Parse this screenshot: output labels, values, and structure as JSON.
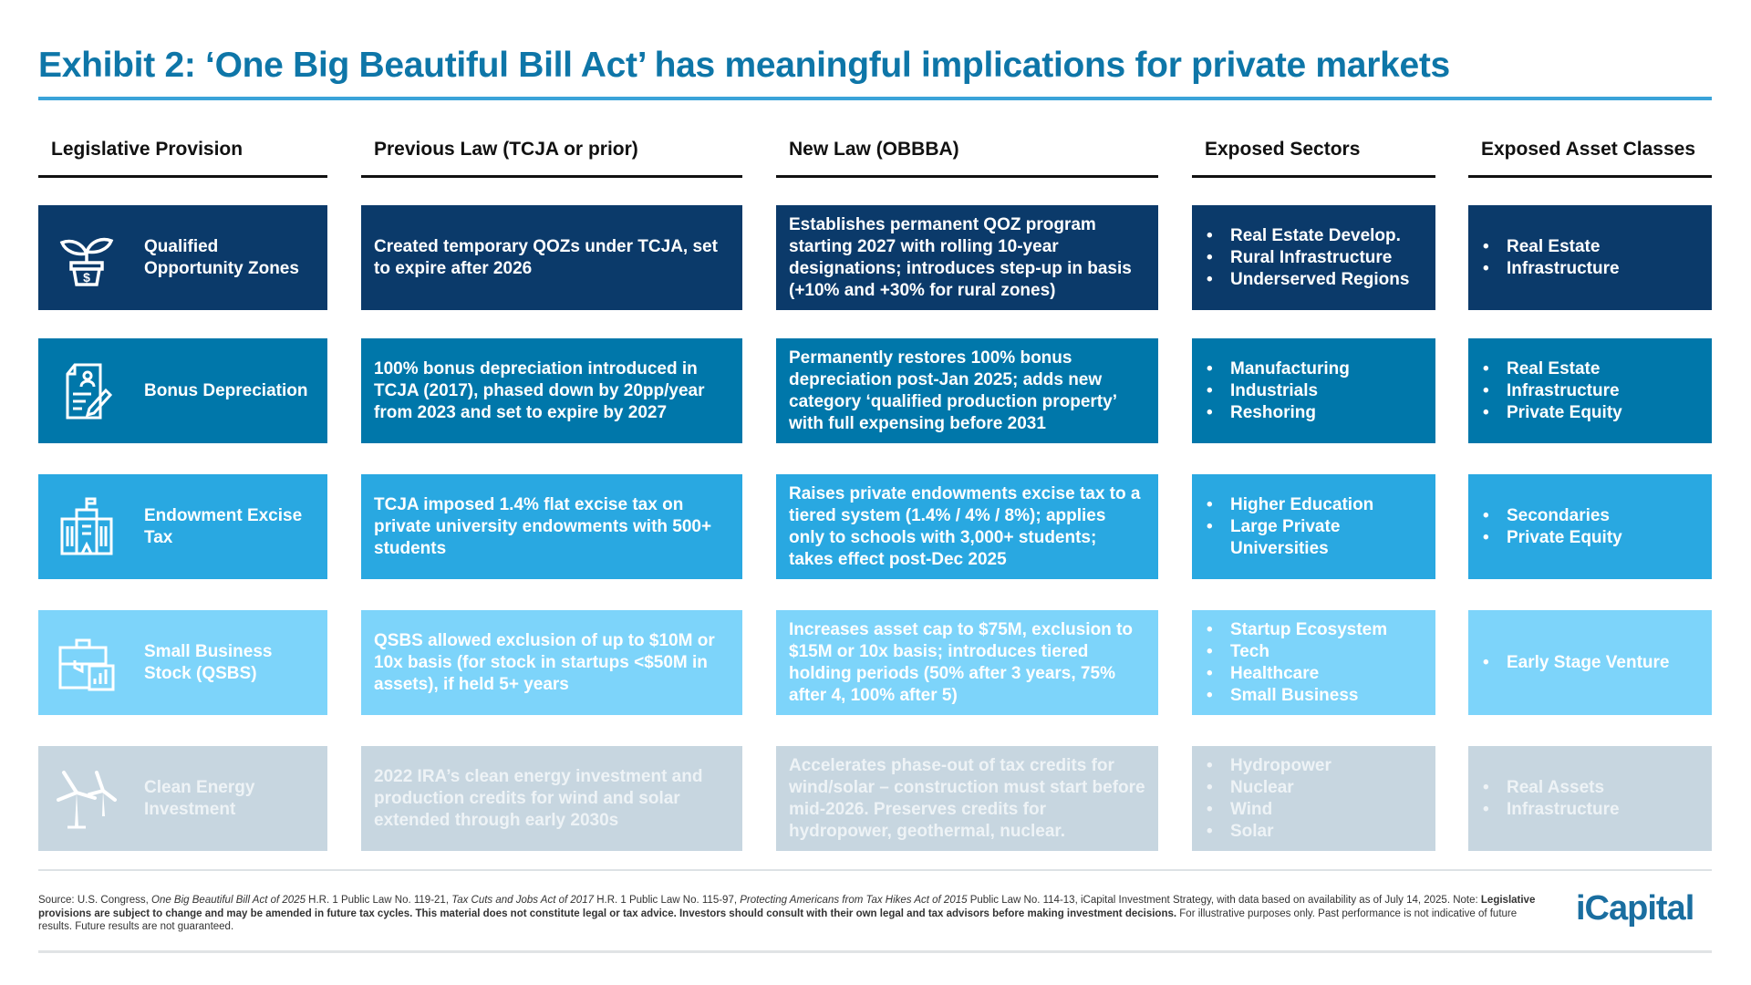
{
  "title": "Exhibit 2: ‘One Big Beautiful Bill Act’ has meaningful implications for private markets",
  "headers": [
    "Legislative Provision",
    "Previous Law (TCJA or prior)",
    "New Law (OBBBA)",
    "Exposed Sectors",
    "Exposed Asset Classes"
  ],
  "colors": {
    "row1": "#0b3a6a",
    "row2": "#0077aa",
    "row3": "#29a8e1",
    "row4": "#7dd4fa",
    "row5": "#c7d6e0",
    "title": "#0e76a8"
  },
  "rows": [
    {
      "icon": "plant-dollar-pot-icon",
      "provision": "Qualified Opportunity Zones",
      "previous": "Created temporary QOZs under TCJA, set to expire after 2026",
      "new": "Establishes permanent QOZ program starting 2027 with rolling 10-year designations; introduces step-up in basis (+10% and +30% for rural zones)",
      "sectors": [
        "Real Estate Develop.",
        "Rural Infrastructure",
        "Underserved Regions"
      ],
      "assets": [
        "Real Estate",
        "Infrastructure"
      ]
    },
    {
      "icon": "document-pen-icon",
      "provision": "Bonus Depreciation",
      "previous": "100% bonus depreciation introduced in TCJA (2017), phased down by 20pp/year from 2023 and set to expire by 2027",
      "new": "Permanently restores 100% bonus depreciation post-Jan 2025; adds new category ‘qualified production property’ with full expensing before 2031",
      "sectors": [
        "Manufacturing",
        "Industrials",
        "Reshoring"
      ],
      "assets": [
        "Real Estate",
        "Infrastructure",
        "Private Equity"
      ]
    },
    {
      "icon": "university-building-icon",
      "provision": "Endowment Excise Tax",
      "previous": "TCJA imposed 1.4% flat excise tax on private university endowments with 500+ students",
      "new": "Raises private endowments excise tax to a tiered system (1.4% / 4% / 8%); applies only to schools with 3,000+ students; takes effect post-Dec 2025",
      "sectors": [
        "Higher Education",
        "Large Private Universities"
      ],
      "assets": [
        "Secondaries",
        "Private Equity"
      ]
    },
    {
      "icon": "briefcase-chart-icon",
      "provision": "Small Business Stock (QSBS)",
      "previous": "QSBS allowed exclusion of up to $10M or 10x basis (for stock in startups <$50M in assets), if held 5+ years",
      "new": "Increases asset cap to $75M, exclusion to $15M or 10x basis; introduces tiered holding periods (50% after 3 years, 75% after 4, 100% after 5)",
      "sectors": [
        "Startup Ecosystem",
        "Tech",
        "Healthcare",
        "Small Business"
      ],
      "assets": [
        "Early Stage Venture"
      ]
    },
    {
      "icon": "wind-turbine-icon",
      "provision": "Clean Energy Investment",
      "previous": "2022 IRA’s clean energy investment and production credits for wind and solar extended through early 2030s",
      "new": "Accelerates phase-out of tax credits for wind/solar – construction must start before mid-2026. Preserves credits for hydropower, geothermal, nuclear.",
      "sectors": [
        "Hydropower",
        "Nuclear",
        "Wind",
        "Solar"
      ],
      "assets": [
        "Real Assets",
        "Infrastructure"
      ]
    }
  ],
  "footnote": {
    "p1": "Source: U.S. Congress, ",
    "i1": "One Big Beautiful Bill Act of 2025",
    "p2": " H.R. 1 Public Law No. 119-21, ",
    "i2": "Tax Cuts and Jobs Act of 2017",
    "p3": " H.R. 1 Public Law No. 115-97, ",
    "i3": "Protecting Americans from Tax Hikes Act of 2015",
    "p4": " Public Law No. 114-13, iCapital Investment Strategy, with data based on availability as of July 14, 2025. Note: ",
    "bold": "Legislative provisions are subject to change and may be amended in future tax cycles. This material does not constitute legal or tax advice. Investors should consult with their own legal and tax advisors before making investment decisions.",
    "p5": " For illustrative purposes only. Past performance is not indicative of future results. Future results are not guaranteed."
  },
  "logo": "iCapital"
}
